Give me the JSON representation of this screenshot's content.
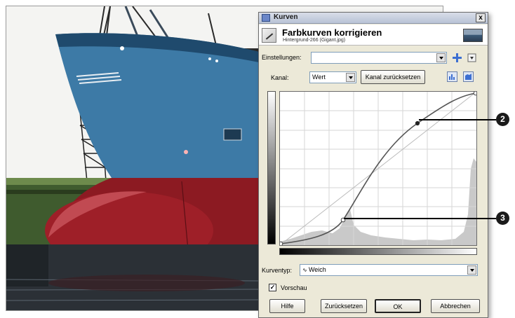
{
  "dialog": {
    "title": "Kurven",
    "close": "x",
    "header_title": "Farbkurven korrigieren",
    "header_subtitle": "Hintergrund-266 (Gigant.jpg)",
    "presets_label": "Einstellungen:",
    "presets_value": "",
    "channel_label": "Kanal:",
    "channel_value": "Wert",
    "reset_channel_label": "Kanal zurücksetzen",
    "curve_type_label": "Kurventyp:",
    "curve_type_value": "Weich",
    "preview_label": "Vorschau",
    "preview_checked": true,
    "preview_check_glyph": "✓",
    "buttons": {
      "help": "Hilfe",
      "reset": "Zurücksetzen",
      "ok": "OK",
      "cancel": "Abbrechen"
    }
  },
  "callouts": {
    "upper": "2",
    "lower": "3"
  },
  "colors": {
    "hull_blue": "#3d7aa6",
    "hull_red": "#8c1a22",
    "dialog_bg": "#ece9d8",
    "accent_blue": "#3c6fd1"
  }
}
